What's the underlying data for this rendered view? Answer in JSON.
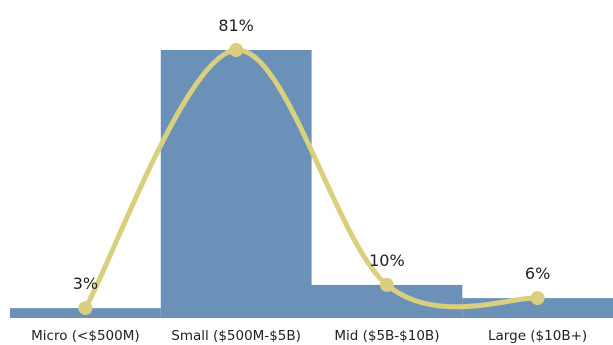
{
  "chart_data": {
    "type": "bar",
    "categories": [
      "Micro (<$500M)",
      "Small ($500M-$5B)",
      "Mid ($5B-$10B)",
      "Large ($10B+)"
    ],
    "values": [
      3,
      81,
      10,
      6
    ],
    "value_labels": [
      "3%",
      "81%",
      "10%",
      "6%"
    ],
    "ylim": [
      0,
      100
    ],
    "grid": false,
    "legend": "none",
    "overlay": "smooth line through bar tops",
    "colors": {
      "bar": "#6b91b8",
      "line": "#d8d07e"
    }
  }
}
